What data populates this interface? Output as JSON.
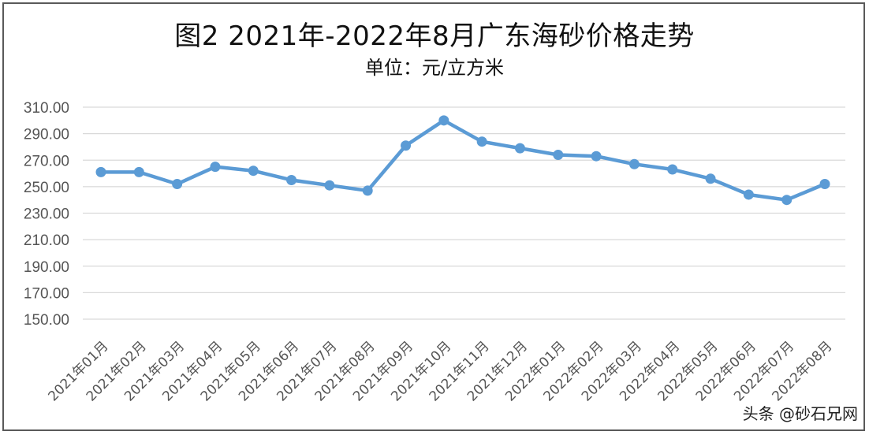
{
  "chart_data": {
    "type": "line",
    "title": "图2  2021年-2022年8月广东海砂价格走势",
    "subtitle": "单位：元/立方米",
    "categories": [
      "2021年01月",
      "2021年02月",
      "2021年03月",
      "2021年04月",
      "2021年05月",
      "2021年06月",
      "2021年07月",
      "2021年08月",
      "2021年09月",
      "2021年10月",
      "2021年11月",
      "2021年12月",
      "2022年01月",
      "2022年02月",
      "2022年03月",
      "2022年04月",
      "2022年05月",
      "2022年06月",
      "2022年07月",
      "2022年08月"
    ],
    "series": [
      {
        "values": [
          261,
          261,
          252,
          265,
          262,
          255,
          251,
          247,
          281,
          300,
          284,
          279,
          274,
          273,
          267,
          263,
          256,
          244,
          240,
          252
        ]
      }
    ],
    "yticks": [
      "150.00",
      "170.00",
      "190.00",
      "210.00",
      "230.00",
      "250.00",
      "270.00",
      "290.00",
      "310.00"
    ],
    "ylim": [
      150,
      310
    ],
    "grid": true,
    "line_color": "#5b9bd5"
  },
  "watermark": "头条 @砂石兄网"
}
